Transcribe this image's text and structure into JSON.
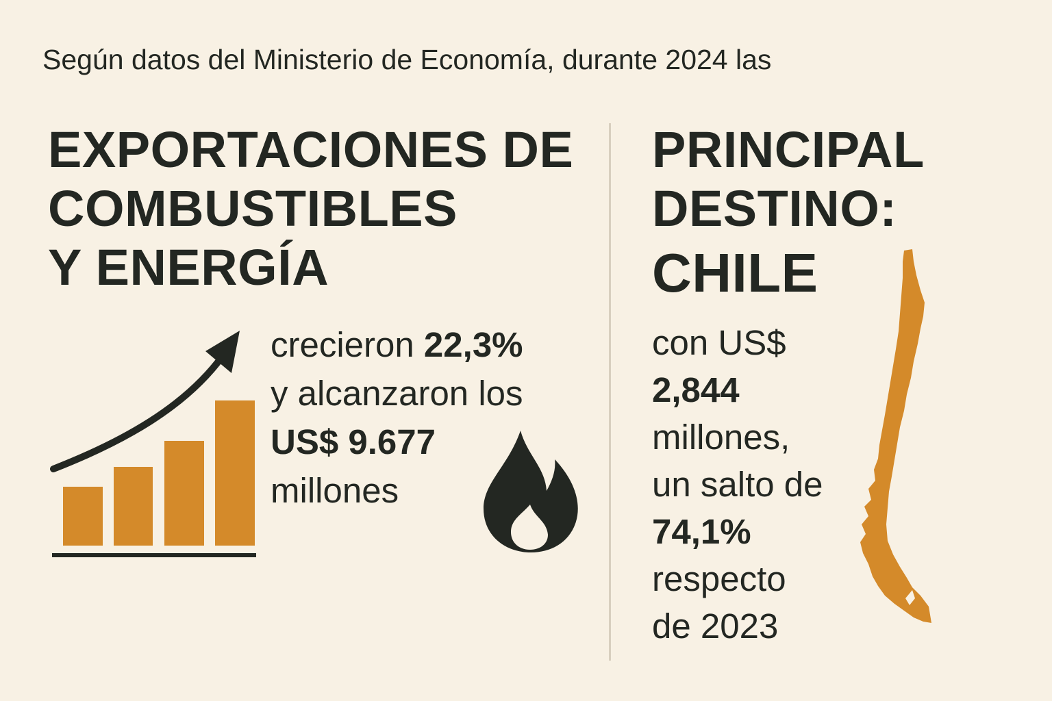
{
  "intro": {
    "text": "Según datos del Ministerio de Economía, durante 2024 las"
  },
  "left": {
    "headline": [
      "EXPORTACIONES DE",
      "COMBUSTIBLES",
      "Y ENERGÍA"
    ],
    "line1_prefix": "crecieron ",
    "growth_percent": "22,3%",
    "line2": "y alcanzaron los",
    "amount": "US$ 9.677",
    "unit": "millones",
    "chart_icon": "bar-chart-growth-icon",
    "flame_icon": "flame-icon",
    "accent_color": "#d48a2a"
  },
  "right": {
    "headline": [
      "PRINCIPAL",
      "DESTINO:"
    ],
    "country": "CHILE",
    "line1": "con US$",
    "amount": "2,844",
    "line3": "millones,",
    "line4": "un salto de",
    "jump_percent": "74,1%",
    "line6": "respecto",
    "line7": "de 2023",
    "map_icon": "chile-map-icon",
    "accent_color": "#d48a2a"
  }
}
